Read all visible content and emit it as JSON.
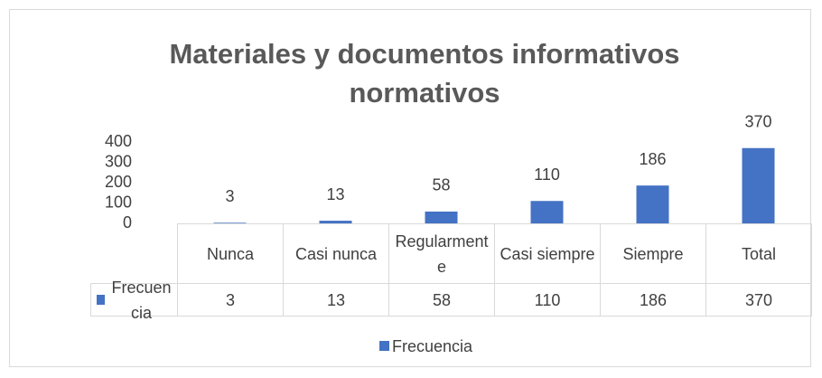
{
  "chart_data": {
    "type": "bar",
    "title": "Materiales y documentos informativos normativos",
    "categories": [
      "Nunca",
      "Casi nunca",
      "Regularmente",
      "Casi siempre",
      "Siempre",
      "Total"
    ],
    "series": [
      {
        "name": "Frecuencia",
        "color": "#4472c4",
        "values": [
          3,
          13,
          58,
          110,
          186,
          370
        ]
      }
    ],
    "ylim": [
      0,
      400
    ],
    "yticks": [
      0,
      100,
      200,
      300,
      400
    ],
    "grid": false,
    "data_table": true,
    "legend": "bottom"
  }
}
